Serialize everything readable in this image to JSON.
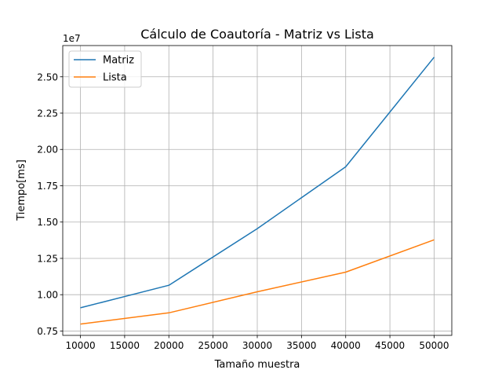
{
  "chart_data": {
    "type": "line",
    "title": "Cálculo de Coautoría - Matriz vs Lista",
    "xlabel": "Tamaño muestra",
    "ylabel": "Tiempo[ms]",
    "y_offset_label": "1e7",
    "y_scale": 10000000,
    "x": [
      10000,
      20000,
      30000,
      40000,
      50000
    ],
    "xlim": [
      8000,
      52000
    ],
    "ylim": [
      7200000,
      27150000
    ],
    "x_ticks": [
      10000,
      15000,
      20000,
      25000,
      30000,
      35000,
      40000,
      45000,
      50000
    ],
    "x_tick_labels": [
      "10000",
      "15000",
      "20000",
      "25000",
      "30000",
      "35000",
      "40000",
      "45000",
      "50000"
    ],
    "y_ticks": [
      7500000,
      10000000,
      12500000,
      15000000,
      17500000,
      20000000,
      22500000,
      25000000
    ],
    "y_tick_labels": [
      "0.75",
      "1.00",
      "1.25",
      "1.50",
      "1.75",
      "2.00",
      "2.25",
      "2.50"
    ],
    "grid": true,
    "legend_position": "top-left",
    "series": [
      {
        "name": "Matriz",
        "color": "#1f77b4",
        "values": [
          9100000,
          10650000,
          14550000,
          18800000,
          26350000
        ]
      },
      {
        "name": "Lista",
        "color": "#ff7f0e",
        "values": [
          7980000,
          8750000,
          10200000,
          11550000,
          13780000
        ]
      }
    ]
  }
}
